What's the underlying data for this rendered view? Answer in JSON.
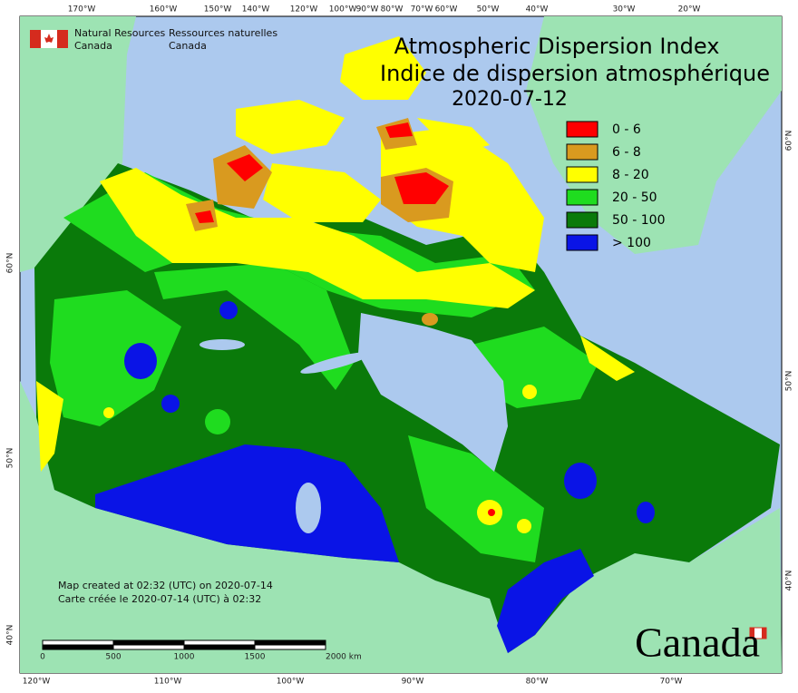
{
  "header": {
    "org_en": [
      "Natural Resources",
      "Canada"
    ],
    "org_fr": [
      "Ressources naturelles",
      "Canada"
    ]
  },
  "title": {
    "line1": "Atmospheric Dispersion Index",
    "line2": "Indice de dispersion atmosphérique",
    "date": "2020-07-12"
  },
  "legend": [
    {
      "label": "0 - 6",
      "color": "#ff0000"
    },
    {
      "label": "6 - 8",
      "color": "#d99a1f"
    },
    {
      "label": "8 - 20",
      "color": "#ffff00"
    },
    {
      "label": "20 - 50",
      "color": "#1fdc1f"
    },
    {
      "label": "50 - 100",
      "color": "#0a7a0a"
    },
    {
      "label": "> 100",
      "color": "#0a14e6"
    }
  ],
  "graticule": {
    "top": [
      "170°W",
      "160°W",
      "150°W",
      "140°W",
      "120°W",
      "100°W",
      "90°W",
      "80°W",
      "70°W",
      "60°W",
      "50°W",
      "40°W",
      "30°W",
      "20°W"
    ],
    "bottom": [
      "120°W",
      "110°W",
      "100°W",
      "90°W",
      "80°W",
      "70°W"
    ],
    "left": [
      "60°N",
      "50°N",
      "40°N"
    ],
    "right": [
      "60°N",
      "50°N",
      "40°N"
    ]
  },
  "footer": {
    "created_en": "Map created at 02:32 (UTC) on 2020-07-14",
    "created_fr": "Carte créée le 2020-07-14 (UTC) à 02:32"
  },
  "scale": {
    "labels": [
      "0",
      "500",
      "1000",
      "1500",
      "2000 km"
    ]
  },
  "wordmark": "Canada"
}
